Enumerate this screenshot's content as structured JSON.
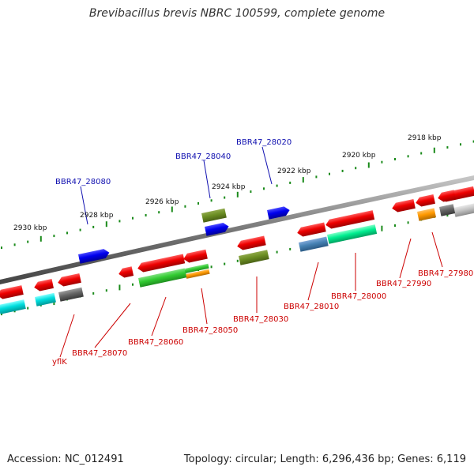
{
  "title": "Brevibacillus brevis NBRC 100599, complete genome",
  "footer": {
    "accession": "Accession: NC_012491",
    "topology": "Topology: circular; Length: 6,296,436 bp; Genes: 6,119"
  },
  "colors": {
    "backbone": "#777777",
    "tick": "#1a8a1a",
    "label_blue": "#1010b0",
    "label_red": "#cc0000"
  },
  "ruler_labels": [
    "2918 kbp",
    "2920 kbp",
    "2922 kbp",
    "2924 kbp",
    "2926 kbp",
    "2928 kbp",
    "2930 kbp"
  ],
  "gene_labels": [
    {
      "name": "BBR47_28020",
      "color": "blue"
    },
    {
      "name": "BBR47_28040",
      "color": "blue"
    },
    {
      "name": "BBR47_28080",
      "color": "blue"
    },
    {
      "name": "BBR47_27980",
      "color": "red"
    },
    {
      "name": "BBR47_27990",
      "color": "red"
    },
    {
      "name": "BBR47_28000",
      "color": "red"
    },
    {
      "name": "BBR47_28010",
      "color": "red"
    },
    {
      "name": "BBR47_28030",
      "color": "red"
    },
    {
      "name": "BBR47_28050",
      "color": "red"
    },
    {
      "name": "BBR47_28060",
      "color": "red"
    },
    {
      "name": "BBR47_28070",
      "color": "red"
    },
    {
      "name": "yflK",
      "color": "red"
    }
  ]
}
